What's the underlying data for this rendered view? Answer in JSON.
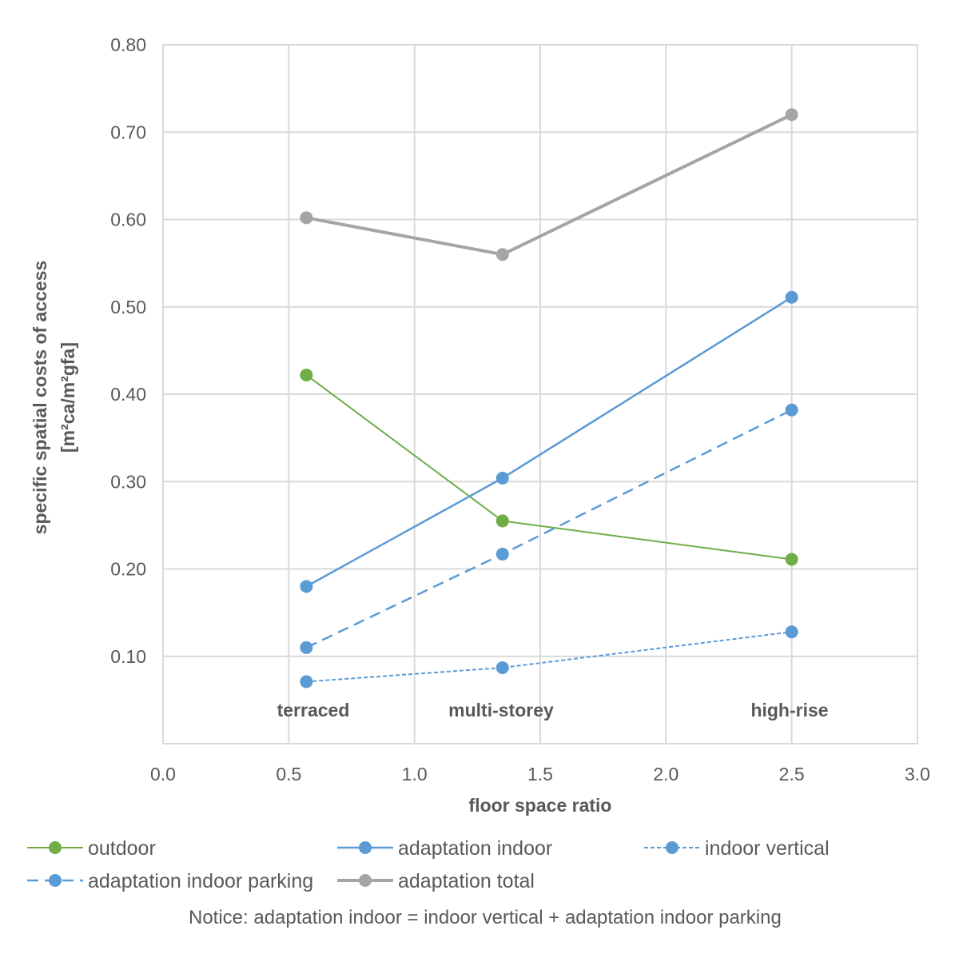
{
  "chart_data": {
    "type": "line",
    "title": "",
    "xlabel": "floor space ratio",
    "ylabel": "specific spatial costs of access",
    "ylabel_unit": "[m²ca/m²gfa]",
    "xlim": [
      0.0,
      3.0
    ],
    "ylim": [
      0.0,
      0.8
    ],
    "x_ticks": [
      "0.0",
      "0.5",
      "1.0",
      "1.5",
      "2.0",
      "2.5",
      "3.0"
    ],
    "y_ticks": [
      "0.10",
      "0.20",
      "0.30",
      "0.40",
      "0.50",
      "0.60",
      "0.70",
      "0.80"
    ],
    "category_annotations": [
      {
        "x": 0.57,
        "label": "terraced"
      },
      {
        "x": 1.35,
        "label": "multi-storey"
      },
      {
        "x": 2.5,
        "label": "high-rise"
      }
    ],
    "series": [
      {
        "name": "outdoor",
        "color": "#70ad47",
        "dash": "solid",
        "width": "thin",
        "x": [
          0.57,
          1.35,
          2.5
        ],
        "values": [
          0.422,
          0.255,
          0.211
        ]
      },
      {
        "name": "adaptation indoor",
        "color": "#5b9bd5",
        "dash": "solid",
        "width": "medium",
        "x": [
          0.57,
          1.35,
          2.5
        ],
        "values": [
          0.18,
          0.304,
          0.511
        ]
      },
      {
        "name": "indoor vertical",
        "color": "#5b9bd5",
        "dash": "dotted",
        "width": "thin",
        "x": [
          0.57,
          1.35,
          2.5
        ],
        "values": [
          0.071,
          0.087,
          0.128
        ]
      },
      {
        "name": "adaptation indoor parking",
        "color": "#5b9bd5",
        "dash": "dashed",
        "width": "medium",
        "x": [
          0.57,
          1.35,
          2.5
        ],
        "values": [
          0.11,
          0.217,
          0.382
        ]
      },
      {
        "name": "adaptation total",
        "color": "#a5a5a5",
        "dash": "solid",
        "width": "thick",
        "x": [
          0.57,
          1.35,
          2.5
        ],
        "values": [
          0.602,
          0.56,
          0.72
        ]
      }
    ],
    "legend": [
      {
        "label": "outdoor"
      },
      {
        "label": "adaptation indoor"
      },
      {
        "label": "indoor vertical"
      },
      {
        "label": "adaptation indoor parking"
      },
      {
        "label": "adaptation total"
      }
    ],
    "notice": "Notice:  adaptation indoor = indoor vertical + adaptation indoor parking"
  }
}
